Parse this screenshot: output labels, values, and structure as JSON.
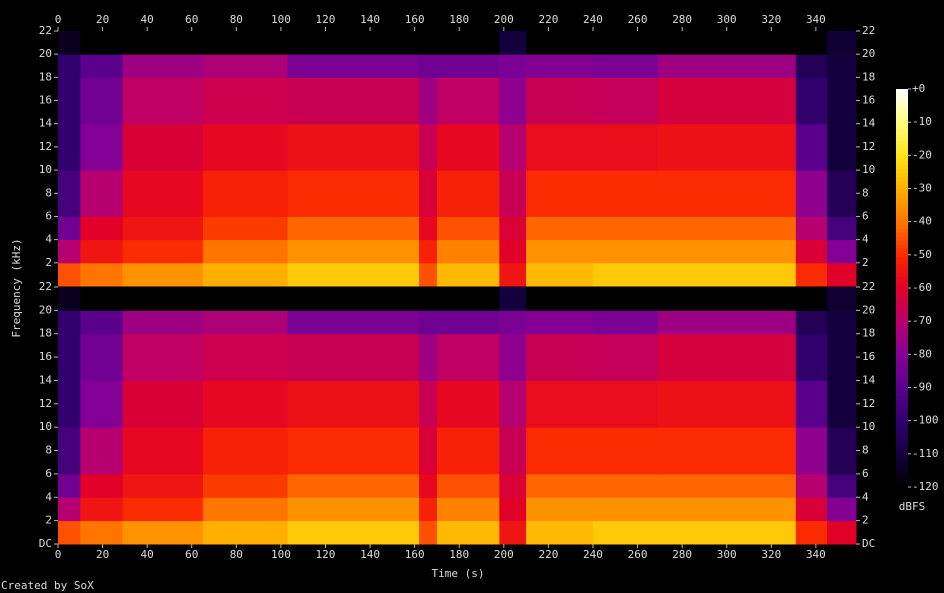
{
  "chart_data": [
    {
      "type": "heatmap",
      "xlim": [
        0,
        358
      ],
      "ylim": [
        0,
        22
      ],
      "xticks": [
        0,
        20,
        40,
        60,
        80,
        100,
        120,
        140,
        160,
        180,
        200,
        220,
        240,
        260,
        280,
        300,
        320,
        340
      ],
      "yticks": [
        2,
        4,
        6,
        8,
        10,
        12,
        14,
        16,
        18,
        20,
        22
      ],
      "x_edges": [
        0,
        10,
        29,
        65,
        103,
        162,
        170,
        198,
        210,
        240,
        269,
        331,
        345,
        358
      ],
      "y_edges": [
        0,
        2,
        4,
        6,
        10,
        14,
        18,
        20,
        22
      ],
      "values": [
        [
          -45,
          -70,
          -85,
          -95,
          -100,
          -100,
          -100,
          -115
        ],
        [
          -40,
          -55,
          -60,
          -70,
          -80,
          -85,
          -90,
          -120
        ],
        [
          -35,
          -50,
          -55,
          -58,
          -62,
          -68,
          -75,
          -120
        ],
        [
          -30,
          -40,
          -48,
          -52,
          -58,
          -65,
          -72,
          -120
        ],
        [
          -25,
          -35,
          -42,
          -50,
          -56,
          -66,
          -82,
          -120
        ],
        [
          -45,
          -52,
          -58,
          -62,
          -66,
          -75,
          -85,
          -120
        ],
        [
          -28,
          -38,
          -45,
          -52,
          -58,
          -68,
          -85,
          -120
        ],
        [
          -55,
          -60,
          -62,
          -66,
          -70,
          -78,
          -82,
          -110
        ],
        [
          -28,
          -35,
          -42,
          -50,
          -57,
          -66,
          -80,
          -120
        ],
        [
          -25,
          -35,
          -42,
          -50,
          -57,
          -67,
          -82,
          -120
        ],
        [
          -25,
          -35,
          -42,
          -50,
          -56,
          -63,
          -75,
          -120
        ],
        [
          -50,
          -62,
          -70,
          -78,
          -90,
          -100,
          -105,
          -120
        ],
        [
          -60,
          -80,
          -95,
          -105,
          -110,
          -110,
          -110,
          -112
        ]
      ]
    },
    {
      "type": "heatmap",
      "xlim": [
        0,
        358
      ],
      "ylim": [
        0,
        22
      ],
      "xticks": [
        0,
        20,
        40,
        60,
        80,
        100,
        120,
        140,
        160,
        180,
        200,
        220,
        240,
        260,
        280,
        300,
        320,
        340
      ],
      "yticks": [
        {
          "value": 0,
          "label": "DC"
        },
        2,
        4,
        6,
        8,
        10,
        12,
        14,
        16,
        18,
        20,
        22
      ],
      "x_edges": [
        0,
        10,
        29,
        65,
        103,
        162,
        170,
        198,
        210,
        240,
        269,
        331,
        345,
        358
      ],
      "y_edges": [
        0,
        2,
        4,
        6,
        10,
        14,
        18,
        20,
        22
      ],
      "values": [
        [
          -45,
          -70,
          -85,
          -95,
          -100,
          -100,
          -100,
          -115
        ],
        [
          -40,
          -55,
          -60,
          -70,
          -80,
          -85,
          -90,
          -120
        ],
        [
          -35,
          -50,
          -55,
          -58,
          -62,
          -68,
          -75,
          -120
        ],
        [
          -30,
          -40,
          -48,
          -52,
          -58,
          -65,
          -72,
          -120
        ],
        [
          -25,
          -35,
          -42,
          -50,
          -56,
          -66,
          -82,
          -120
        ],
        [
          -45,
          -52,
          -58,
          -62,
          -66,
          -75,
          -85,
          -120
        ],
        [
          -28,
          -38,
          -45,
          -52,
          -58,
          -68,
          -85,
          -120
        ],
        [
          -55,
          -60,
          -62,
          -66,
          -70,
          -78,
          -82,
          -110
        ],
        [
          -28,
          -35,
          -42,
          -50,
          -57,
          -66,
          -80,
          -120
        ],
        [
          -25,
          -35,
          -42,
          -50,
          -57,
          -67,
          -82,
          -120
        ],
        [
          -25,
          -35,
          -42,
          -50,
          -56,
          -63,
          -75,
          -120
        ],
        [
          -50,
          -62,
          -70,
          -78,
          -90,
          -100,
          -105,
          -120
        ],
        [
          -60,
          -80,
          -95,
          -105,
          -110,
          -110,
          -110,
          -112
        ]
      ]
    }
  ],
  "x_label": "Time (s)",
  "y_label": "Frequency (kHz)",
  "footer": "Created by SoX",
  "colorbar": {
    "label": "dBFS",
    "lim": [
      -120,
      0
    ],
    "ticks": [
      {
        "value": 0,
        "label": "+0"
      },
      -10,
      -20,
      -30,
      -40,
      -50,
      -60,
      -70,
      -80,
      -90,
      -100,
      -110,
      -120
    ]
  }
}
